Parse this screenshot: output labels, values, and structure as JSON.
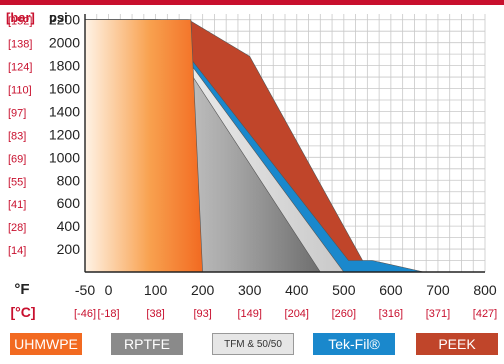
{
  "chart_data": {
    "type": "area",
    "y_unit_secondary": "[bar]",
    "y_unit_primary": "psi",
    "x_unit_primary": "°F",
    "x_unit_secondary": "[°C]",
    "xlim": [
      -50,
      800
    ],
    "ylim": [
      0,
      2250
    ],
    "yticks": [
      {
        "psi": "2200",
        "bar": "[152]"
      },
      {
        "psi": "2000",
        "bar": "[138]"
      },
      {
        "psi": "1800",
        "bar": "[124]"
      },
      {
        "psi": "1600",
        "bar": "[110]"
      },
      {
        "psi": "1400",
        "bar": "[97]"
      },
      {
        "psi": "1200",
        "bar": "[83]"
      },
      {
        "psi": "1000",
        "bar": "[69]"
      },
      {
        "psi": "800",
        "bar": "[55]"
      },
      {
        "psi": "600",
        "bar": "[41]"
      },
      {
        "psi": "400",
        "bar": "[28]"
      },
      {
        "psi": "200",
        "bar": "[14]"
      }
    ],
    "xticks": [
      {
        "f": "-50",
        "c": "[-46]"
      },
      {
        "f": "0",
        "c": "[-18]"
      },
      {
        "f": "100",
        "c": "[38]"
      },
      {
        "f": "200",
        "c": "[93]"
      },
      {
        "f": "300",
        "c": "[149]"
      },
      {
        "f": "400",
        "c": "[204]"
      },
      {
        "f": "500",
        "c": "[260]"
      },
      {
        "f": "600",
        "c": "[316]"
      },
      {
        "f": "700",
        "c": "[371]"
      },
      {
        "f": "800",
        "c": "[427]"
      }
    ],
    "series": [
      {
        "name": "PEEK",
        "color": "#c0452a",
        "points": [
          [
            -50,
            2200
          ],
          [
            170,
            2200
          ],
          [
            300,
            1880
          ],
          [
            540,
            100
          ],
          [
            550,
            0
          ]
        ]
      },
      {
        "name": "Tek-Fil®",
        "color": "#1a88cc",
        "points": [
          [
            -50,
            2200
          ],
          [
            110,
            2200
          ],
          [
            510,
            100
          ],
          [
            560,
            100
          ],
          [
            670,
            0
          ]
        ]
      },
      {
        "name": "TFM & 50/50",
        "color": "#dcdcdc",
        "points": [
          [
            -50,
            2200
          ],
          [
            105,
            2200
          ],
          [
            500,
            0
          ]
        ]
      },
      {
        "name": "RPTFE",
        "color": "#8a8a8a",
        "points": [
          [
            -50,
            2200
          ],
          [
            100,
            2200
          ],
          [
            450,
            0
          ]
        ]
      },
      {
        "name": "UHMWPE",
        "color": "#f26a21",
        "points": [
          [
            -50,
            2200
          ],
          [
            175,
            2200
          ],
          [
            200,
            0
          ]
        ]
      }
    ],
    "grid": true,
    "legend_position": "bottom"
  },
  "legend": {
    "uhmwpe": "UHMWPE",
    "rptfe": "RPTFE",
    "tfm": "TFM & 50/50",
    "tekfil": "Tek-Fil®",
    "peek": "PEEK"
  }
}
